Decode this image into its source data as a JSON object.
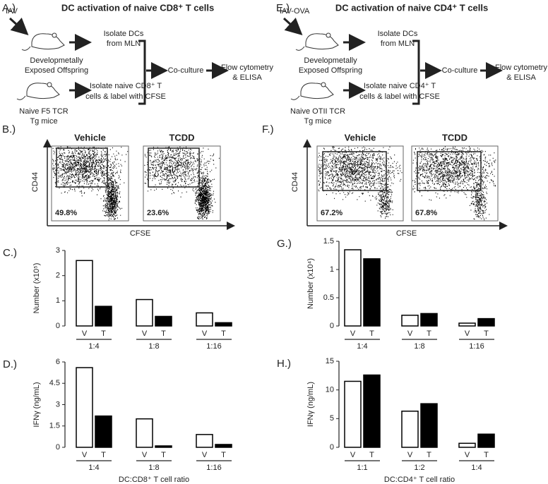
{
  "panels": {
    "A": {
      "label": "A.)",
      "title": "DC activation of naive CD8⁺ T cells",
      "stimulus": "IAV",
      "donor": [
        "Developmetally",
        "Exposed Offspring"
      ],
      "step_dc": [
        "Isolate DCs",
        "from MLN"
      ],
      "recipient": [
        "Naive F5 TCR",
        "Tg mice"
      ],
      "step_t": [
        "Isolate naive CD8⁺ T",
        "cells & label with CFSE"
      ],
      "coculture": "Co-culture",
      "readout": [
        "Flow cytometry",
        "& ELISA"
      ]
    },
    "E": {
      "label": "E.)",
      "title": "DC activation of naive CD4⁺ T cells",
      "stimulus": "IAV-OVA",
      "donor": [
        "Developmetally",
        "Exposed Offspring"
      ],
      "step_dc": [
        "Isolate DCs",
        "from MLN"
      ],
      "recipient": [
        "Naive OTII TCR",
        "Tg mice"
      ],
      "step_t": [
        "Isolate naive CD4⁺ T",
        "cells & label with CFSE"
      ],
      "coculture": "Co-culture",
      "readout": [
        "Flow cytometry",
        "& ELISA"
      ]
    },
    "B": {
      "label": "B.)",
      "y_label": "CD44",
      "x_label": "CFSE",
      "plots": [
        {
          "title": "Vehicle",
          "gate": "49.8%"
        },
        {
          "title": "TCDD",
          "gate": "23.6%"
        }
      ]
    },
    "F": {
      "label": "F.)",
      "y_label": "CD44",
      "x_label": "CFSE",
      "plots": [
        {
          "title": "Vehicle",
          "gate": "67.2%"
        },
        {
          "title": "TCDD",
          "gate": "67.8%"
        }
      ]
    }
  },
  "chart_data": [
    {
      "type": "bar",
      "panel_label": "C.)",
      "y_label": "Number (x10⁵)",
      "categories": [
        "1:4",
        "1:8",
        "1:16"
      ],
      "series": [
        {
          "name": "V",
          "color": "#ffffff",
          "values": [
            2.6,
            1.05,
            0.52
          ]
        },
        {
          "name": "T",
          "color": "#000000",
          "values": [
            0.78,
            0.38,
            0.13
          ]
        }
      ],
      "ylim": [
        0,
        3
      ],
      "yticks": [
        0,
        1,
        2,
        3
      ]
    },
    {
      "type": "bar",
      "panel_label": "D.)",
      "y_label": "IFNγ (ng/mL)",
      "x_label": "DC:CD8⁺ T cell ratio",
      "categories": [
        "1:4",
        "1:8",
        "1:16"
      ],
      "series": [
        {
          "name": "V",
          "color": "#ffffff",
          "values": [
            5.6,
            2.0,
            0.9
          ]
        },
        {
          "name": "T",
          "color": "#000000",
          "values": [
            2.2,
            0.1,
            0.2
          ]
        }
      ],
      "ylim": [
        0,
        6
      ],
      "yticks": [
        0,
        1.5,
        3,
        4.5,
        6
      ]
    },
    {
      "type": "bar",
      "panel_label": "G.)",
      "y_label": "Number (x10⁴)",
      "categories": [
        "1:4",
        "1:8",
        "1:16"
      ],
      "series": [
        {
          "name": "V",
          "color": "#ffffff",
          "values": [
            1.35,
            0.19,
            0.05
          ]
        },
        {
          "name": "T",
          "color": "#000000",
          "values": [
            1.19,
            0.22,
            0.13
          ]
        }
      ],
      "ylim": [
        0,
        1.5
      ],
      "yticks": [
        0,
        0.5,
        1,
        1.5
      ]
    },
    {
      "type": "bar",
      "panel_label": "H.)",
      "y_label": "IFNγ (ng/mL)",
      "x_label": "DC:CD4⁺ T cell ratio",
      "categories": [
        "1:1",
        "1:2",
        "1:4"
      ],
      "series": [
        {
          "name": "V",
          "color": "#ffffff",
          "values": [
            11.5,
            6.3,
            0.7
          ]
        },
        {
          "name": "T",
          "color": "#000000",
          "values": [
            12.6,
            7.6,
            2.3
          ]
        }
      ],
      "ylim": [
        0,
        15
      ],
      "yticks": [
        0,
        5,
        10,
        15
      ]
    }
  ]
}
